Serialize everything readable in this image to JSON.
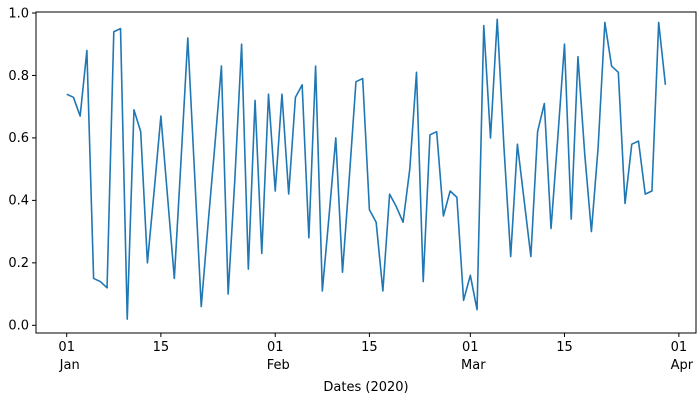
{
  "chart_data": {
    "type": "line",
    "title": "",
    "xlabel": "Dates (2020)",
    "ylabel": "",
    "legend": null,
    "grid": false,
    "x_start_date": "2020-01-01",
    "x_end_date": "2020-03-30",
    "x_frequency": "daily",
    "x": [
      "2020-01-01",
      "2020-01-02",
      "2020-01-03",
      "2020-01-04",
      "2020-01-05",
      "2020-01-06",
      "2020-01-07",
      "2020-01-08",
      "2020-01-09",
      "2020-01-10",
      "2020-01-11",
      "2020-01-12",
      "2020-01-13",
      "2020-01-14",
      "2020-01-15",
      "2020-01-16",
      "2020-01-17",
      "2020-01-18",
      "2020-01-19",
      "2020-01-20",
      "2020-01-21",
      "2020-01-22",
      "2020-01-23",
      "2020-01-24",
      "2020-01-25",
      "2020-01-26",
      "2020-01-27",
      "2020-01-28",
      "2020-01-29",
      "2020-01-30",
      "2020-01-31",
      "2020-02-01",
      "2020-02-02",
      "2020-02-03",
      "2020-02-04",
      "2020-02-05",
      "2020-02-06",
      "2020-02-07",
      "2020-02-08",
      "2020-02-09",
      "2020-02-10",
      "2020-02-11",
      "2020-02-12",
      "2020-02-13",
      "2020-02-14",
      "2020-02-15",
      "2020-02-16",
      "2020-02-17",
      "2020-02-18",
      "2020-02-19",
      "2020-02-20",
      "2020-02-21",
      "2020-02-22",
      "2020-02-23",
      "2020-02-24",
      "2020-02-25",
      "2020-02-26",
      "2020-02-27",
      "2020-02-28",
      "2020-02-29",
      "2020-03-01",
      "2020-03-02",
      "2020-03-03",
      "2020-03-04",
      "2020-03-05",
      "2020-03-06",
      "2020-03-07",
      "2020-03-08",
      "2020-03-09",
      "2020-03-10",
      "2020-03-11",
      "2020-03-12",
      "2020-03-13",
      "2020-03-14",
      "2020-03-15",
      "2020-03-16",
      "2020-03-17",
      "2020-03-18",
      "2020-03-19",
      "2020-03-20",
      "2020-03-21",
      "2020-03-22",
      "2020-03-23",
      "2020-03-24",
      "2020-03-25",
      "2020-03-26",
      "2020-03-27",
      "2020-03-28",
      "2020-03-29",
      "2020-03-30"
    ],
    "values": [
      0.74,
      0.73,
      0.67,
      0.88,
      0.15,
      0.14,
      0.12,
      0.94,
      0.95,
      0.02,
      0.69,
      0.62,
      0.2,
      0.43,
      0.67,
      0.41,
      0.15,
      0.53,
      0.92,
      0.49,
      0.06,
      0.32,
      0.57,
      0.83,
      0.1,
      0.47,
      0.9,
      0.18,
      0.72,
      0.23,
      0.74,
      0.43,
      0.74,
      0.42,
      0.73,
      0.77,
      0.28,
      0.83,
      0.11,
      0.35,
      0.6,
      0.17,
      0.47,
      0.78,
      0.79,
      0.37,
      0.33,
      0.11,
      0.42,
      0.38,
      0.33,
      0.5,
      0.81,
      0.14,
      0.61,
      0.62,
      0.35,
      0.43,
      0.41,
      0.08,
      0.16,
      0.05,
      0.96,
      0.6,
      0.98,
      0.57,
      0.22,
      0.58,
      0.4,
      0.22,
      0.62,
      0.71,
      0.31,
      0.6,
      0.9,
      0.34,
      0.86,
      0.55,
      0.3,
      0.57,
      0.97,
      0.83,
      0.81,
      0.39,
      0.58,
      0.59,
      0.42,
      0.43,
      0.97,
      0.77
    ],
    "ylim": [
      -0.025,
      1.005
    ],
    "y_ticks": [
      "0.0",
      "0.2",
      "0.4",
      "0.6",
      "0.8",
      "1.0"
    ],
    "y_tick_values": [
      0.0,
      0.2,
      0.4,
      0.6,
      0.8,
      1.0
    ],
    "x_ticks": [
      {
        "day_index": 0,
        "label": "01",
        "month": "Jan"
      },
      {
        "day_index": 14,
        "label": "15",
        "month": ""
      },
      {
        "day_index": 31,
        "label": "01",
        "month": "Feb"
      },
      {
        "day_index": 45,
        "label": "15",
        "month": ""
      },
      {
        "day_index": 60,
        "label": "01",
        "month": "Mar"
      },
      {
        "day_index": 74,
        "label": "15",
        "month": ""
      },
      {
        "day_index": 91,
        "label": "01",
        "month": "Apr"
      }
    ],
    "legend_position": "none"
  },
  "colors": {
    "line": "#1f77b4",
    "axis": "#000000",
    "text": "#000000",
    "background": "#ffffff"
  }
}
